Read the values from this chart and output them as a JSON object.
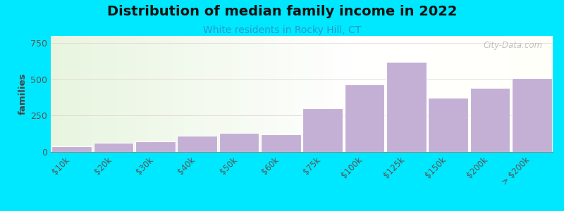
{
  "title": "Distribution of median family income in 2022",
  "subtitle": "White residents in Rocky Hill, CT",
  "categories": [
    "$10k",
    "$20k",
    "$30k",
    "$40k",
    "$50k",
    "$60k",
    "$75k",
    "$100k",
    "$125k",
    "$150k",
    "$200k",
    "> $200k"
  ],
  "values": [
    40,
    65,
    75,
    110,
    130,
    120,
    300,
    465,
    620,
    375,
    440,
    510
  ],
  "bar_color": "#c4b0d5",
  "title_fontsize": 14,
  "subtitle_fontsize": 10,
  "subtitle_color": "#2299cc",
  "ylabel": "families",
  "ylim": [
    0,
    800
  ],
  "yticks": [
    0,
    250,
    500,
    750
  ],
  "background_outer": "#00e8ff",
  "watermark": "City-Data.com"
}
